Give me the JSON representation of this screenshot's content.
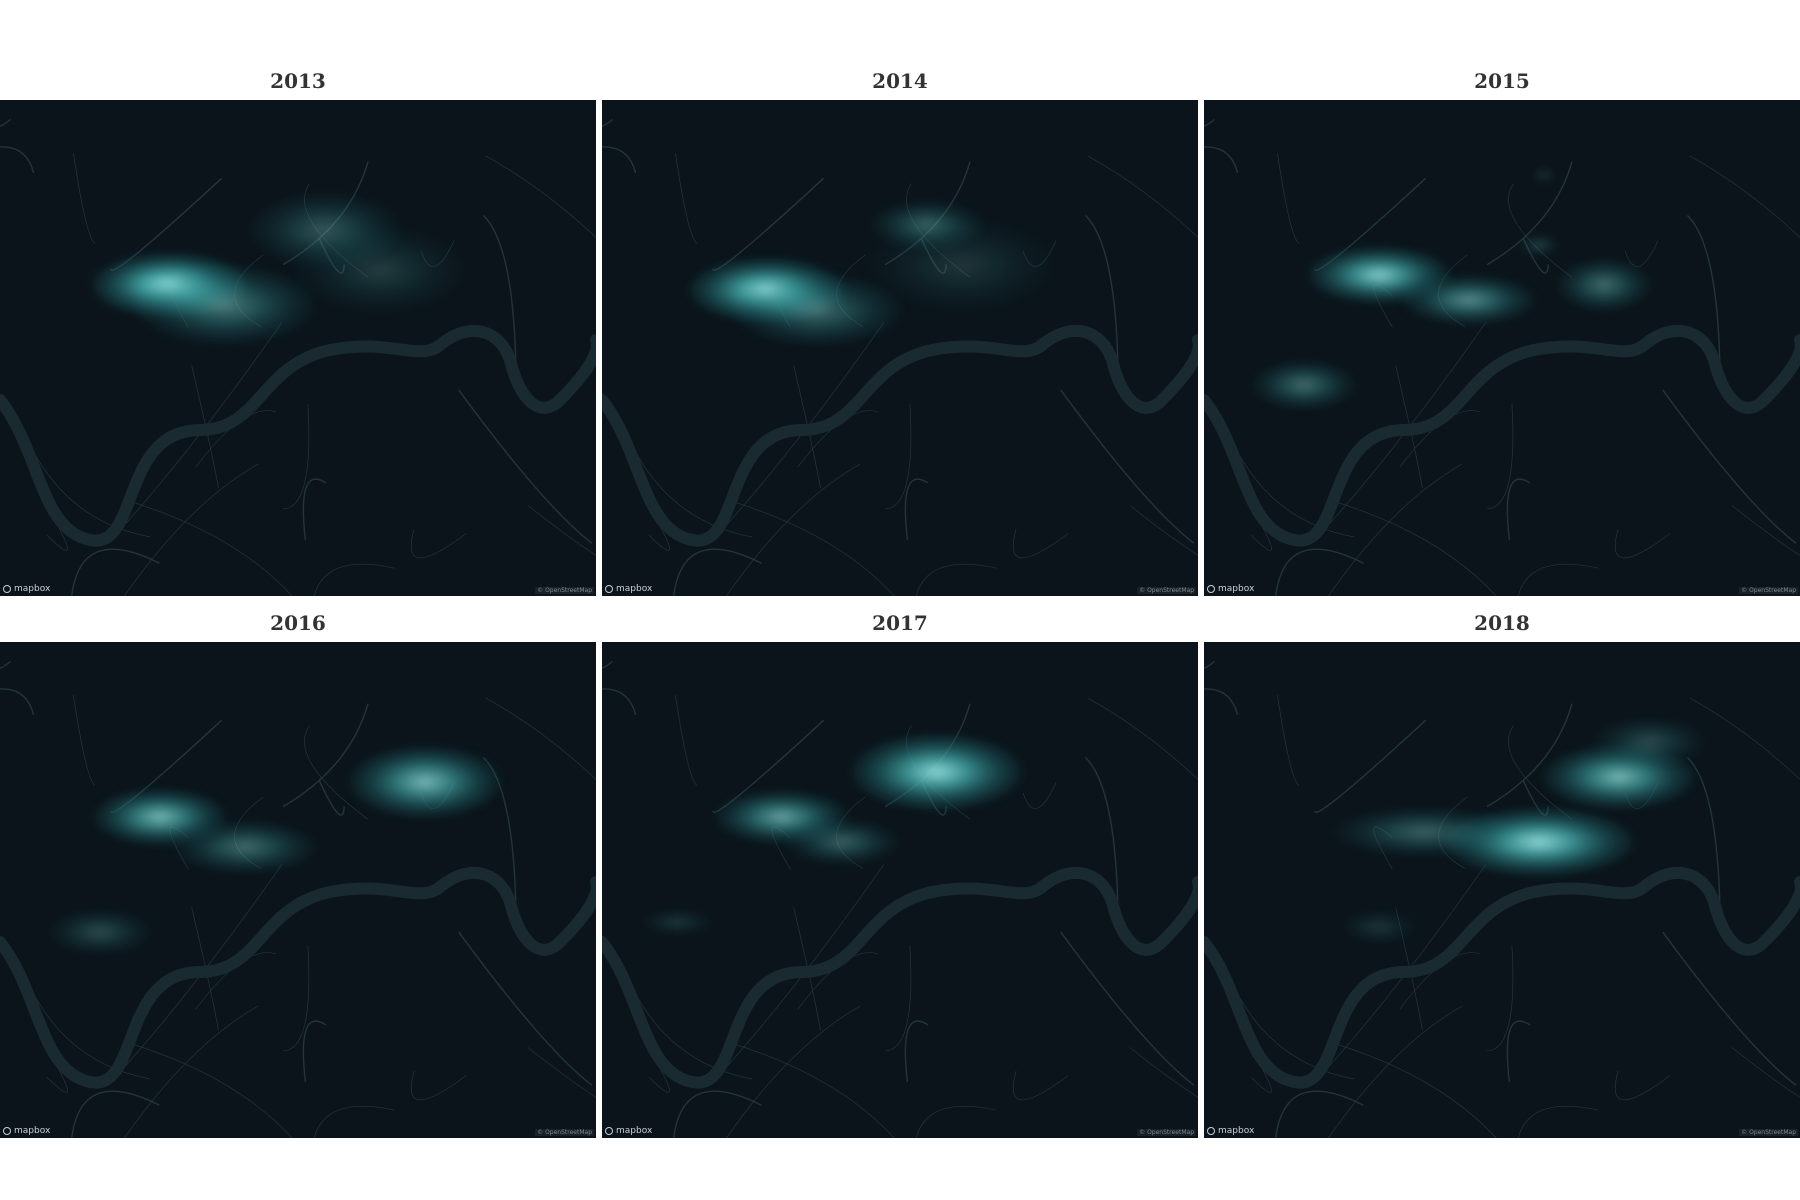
{
  "brand": {
    "logo_text": "mapbox",
    "attribution": "© OpenStreetMap"
  },
  "colors": {
    "map_bg": "#0b141a",
    "heat_core": "#9ff0ec",
    "heat_mid": "#47b1b0",
    "heat_edge": "#1f6a70",
    "river": "#1a2a31",
    "roads": "#2a3c45"
  },
  "panels": [
    {
      "year": "2013"
    },
    {
      "year": "2014"
    },
    {
      "year": "2015"
    },
    {
      "year": "2016"
    },
    {
      "year": "2017"
    },
    {
      "year": "2018"
    }
  ]
}
